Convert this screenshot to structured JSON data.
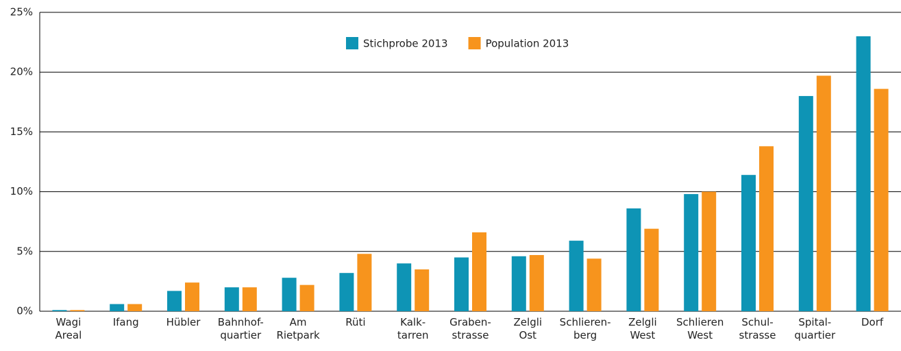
{
  "chart_data": {
    "type": "bar",
    "categories": [
      "Wagi\nAreal",
      "Ifang",
      "Hübler",
      "Bahnhof-\nquartier",
      "Am\nRietpark",
      "Rüti",
      "Kalk-\ntarren",
      "Graben-\nstrasse",
      "Zelgli\nOst",
      "Schlieren-\nberg",
      "Zelgli\nWest",
      "Schlieren\nWest",
      "Schul-\nstrasse",
      "Spital-\nquartier",
      "Dorf"
    ],
    "series": [
      {
        "name": "Stichprobe 2013",
        "color": "#0e94b5",
        "values": [
          0.1,
          0.6,
          1.7,
          2.0,
          2.8,
          3.2,
          4.0,
          4.5,
          4.6,
          5.9,
          8.6,
          9.8,
          11.4,
          18.0,
          23.0
        ]
      },
      {
        "name": "Population 2013",
        "color": "#f7941d",
        "values": [
          0.1,
          0.6,
          2.4,
          2.0,
          2.2,
          4.8,
          3.5,
          6.6,
          4.7,
          4.4,
          6.9,
          10.0,
          13.8,
          19.7,
          18.6
        ]
      }
    ],
    "ylim": [
      0,
      25
    ],
    "yticks": [
      {
        "value": 0,
        "label": "0%"
      },
      {
        "value": 5,
        "label": "5%"
      },
      {
        "value": 10,
        "label": "10%"
      },
      {
        "value": 15,
        "label": "15%"
      },
      {
        "value": 20,
        "label": "20%"
      },
      {
        "value": 25,
        "label": "25%"
      }
    ],
    "grid": true,
    "legend": "top"
  }
}
